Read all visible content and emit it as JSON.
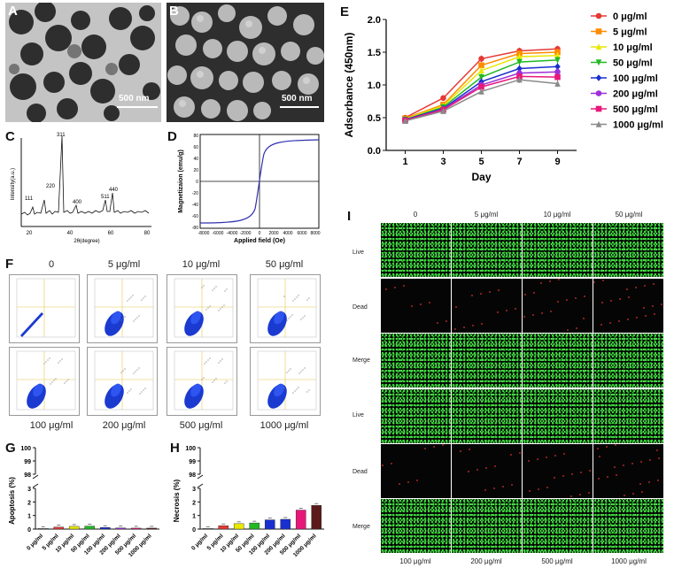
{
  "panels": {
    "A": {
      "label": "A",
      "scalebar": "500 nm"
    },
    "B": {
      "label": "B",
      "scalebar": "500 nm"
    },
    "C": {
      "label": "C",
      "xlabel": "2θ(degree)",
      "ylabel": "Intensity(a.u.)",
      "peaks": [
        "111",
        "220",
        "311",
        "400",
        "511",
        "440"
      ],
      "xticks": [
        "20",
        "40",
        "60",
        "80"
      ]
    },
    "D": {
      "label": "D",
      "xlabel": "Applied field (Oe)",
      "ylabel": "Magnetizaion (emu/g)",
      "xticks": [
        "-8000",
        "-6000",
        "-4000",
        "-2000",
        "0",
        "2000",
        "4000",
        "6000",
        "8000"
      ],
      "yticks": [
        "80",
        "60",
        "40",
        "20",
        "0",
        "-20",
        "-40",
        "-60",
        "-80"
      ]
    },
    "E": {
      "label": "E"
    },
    "F": {
      "label": "F",
      "top_labels": [
        "0",
        "5 μg/ml",
        "10 μg/ml",
        "50 μg/ml"
      ],
      "bottom_labels": [
        "100 μg/ml",
        "200 μg/ml",
        "500 μg/ml",
        "1000 μg/ml"
      ]
    },
    "G": {
      "label": "G"
    },
    "H": {
      "label": "H"
    },
    "I": {
      "label": "I",
      "col_headers_top": [
        "0",
        "5 μg/ml",
        "10 μg/ml",
        "50 μg/ml"
      ],
      "col_headers_bottom": [
        "100 μg/ml",
        "200 μg/ml",
        "500 μg/ml",
        "1000 μg/ml"
      ],
      "row_labels": [
        "Live",
        "Dead",
        "Merge",
        "Live",
        "Dead",
        "Merge"
      ]
    }
  },
  "chart_data": [
    {
      "id": "E",
      "type": "line",
      "xlabel": "Day",
      "ylabel": "Adsorbance (450nm)",
      "x": [
        1,
        3,
        5,
        7,
        9
      ],
      "ylim": [
        0.0,
        2.0
      ],
      "yticks": [
        "0.0",
        "0.5",
        "1.0",
        "1.5",
        "2.0"
      ],
      "xticks": [
        "1",
        "3",
        "5",
        "7",
        "9"
      ],
      "legend_position": "right",
      "series": [
        {
          "name": "0 μg/ml",
          "color": "#e53935",
          "marker": "circle",
          "values": [
            0.5,
            0.8,
            1.4,
            1.52,
            1.55
          ]
        },
        {
          "name": "5 μg/ml",
          "color": "#ff8c00",
          "marker": "square",
          "values": [
            0.49,
            0.7,
            1.3,
            1.48,
            1.5
          ]
        },
        {
          "name": "10 μg/ml",
          "color": "#e8e800",
          "marker": "triangle-up",
          "values": [
            0.48,
            0.68,
            1.22,
            1.43,
            1.45
          ]
        },
        {
          "name": "50 μg/ml",
          "color": "#22b822",
          "marker": "triangle-down",
          "values": [
            0.47,
            0.66,
            1.12,
            1.35,
            1.38
          ]
        },
        {
          "name": "100 μg/ml",
          "color": "#1a2fd0",
          "marker": "diamond",
          "values": [
            0.47,
            0.64,
            1.05,
            1.25,
            1.28
          ]
        },
        {
          "name": "200 μg/ml",
          "color": "#9b30d9",
          "marker": "circle",
          "values": [
            0.46,
            0.63,
            1.0,
            1.18,
            1.2
          ]
        },
        {
          "name": "500 μg/ml",
          "color": "#e8187a",
          "marker": "square",
          "values": [
            0.46,
            0.62,
            0.97,
            1.13,
            1.12
          ]
        },
        {
          "name": "1000 μg/ml",
          "color": "#8a8a8a",
          "marker": "triangle-up",
          "values": [
            0.45,
            0.6,
            0.9,
            1.08,
            1.02
          ]
        }
      ]
    },
    {
      "id": "G",
      "type": "bar",
      "ylabel": "Apoptosis (%)",
      "categories": [
        "0 μg/ml",
        "5 μg/ml",
        "10 μg/ml",
        "50 μg/ml",
        "100 μg/ml",
        "200 μg/ml",
        "500 μg/ml",
        "1000 μg/ml"
      ],
      "values": [
        0.05,
        0.15,
        0.2,
        0.22,
        0.12,
        0.08,
        0.07,
        0.07
      ],
      "colors": [
        "#888888",
        "#e53935",
        "#e8e800",
        "#22b822",
        "#1a2fd0",
        "#9b30d9",
        "#e8187a",
        "#5a1a1a"
      ],
      "yticks_low": [
        "0",
        "1",
        "2",
        "3"
      ],
      "yticks_high": [
        "98",
        "99",
        "100"
      ],
      "break": true
    },
    {
      "id": "H",
      "type": "bar",
      "ylabel": "Necrosis (%)",
      "categories": [
        "0 μg/ml",
        "5 μg/ml",
        "10 μg/ml",
        "50 μg/ml",
        "100 μg/ml",
        "200 μg/ml",
        "500 μg/ml",
        "1000 μg/ml"
      ],
      "values": [
        0.05,
        0.25,
        0.4,
        0.45,
        0.68,
        0.72,
        1.4,
        1.75
      ],
      "colors": [
        "#888888",
        "#e53935",
        "#e8e800",
        "#22b822",
        "#1a2fd0",
        "#1a2fd0",
        "#e8187a",
        "#5a1a1a"
      ],
      "yticks_low": [
        "0",
        "1",
        "2",
        "3"
      ],
      "yticks_high": [
        "98",
        "99",
        "100"
      ],
      "break": true
    }
  ]
}
